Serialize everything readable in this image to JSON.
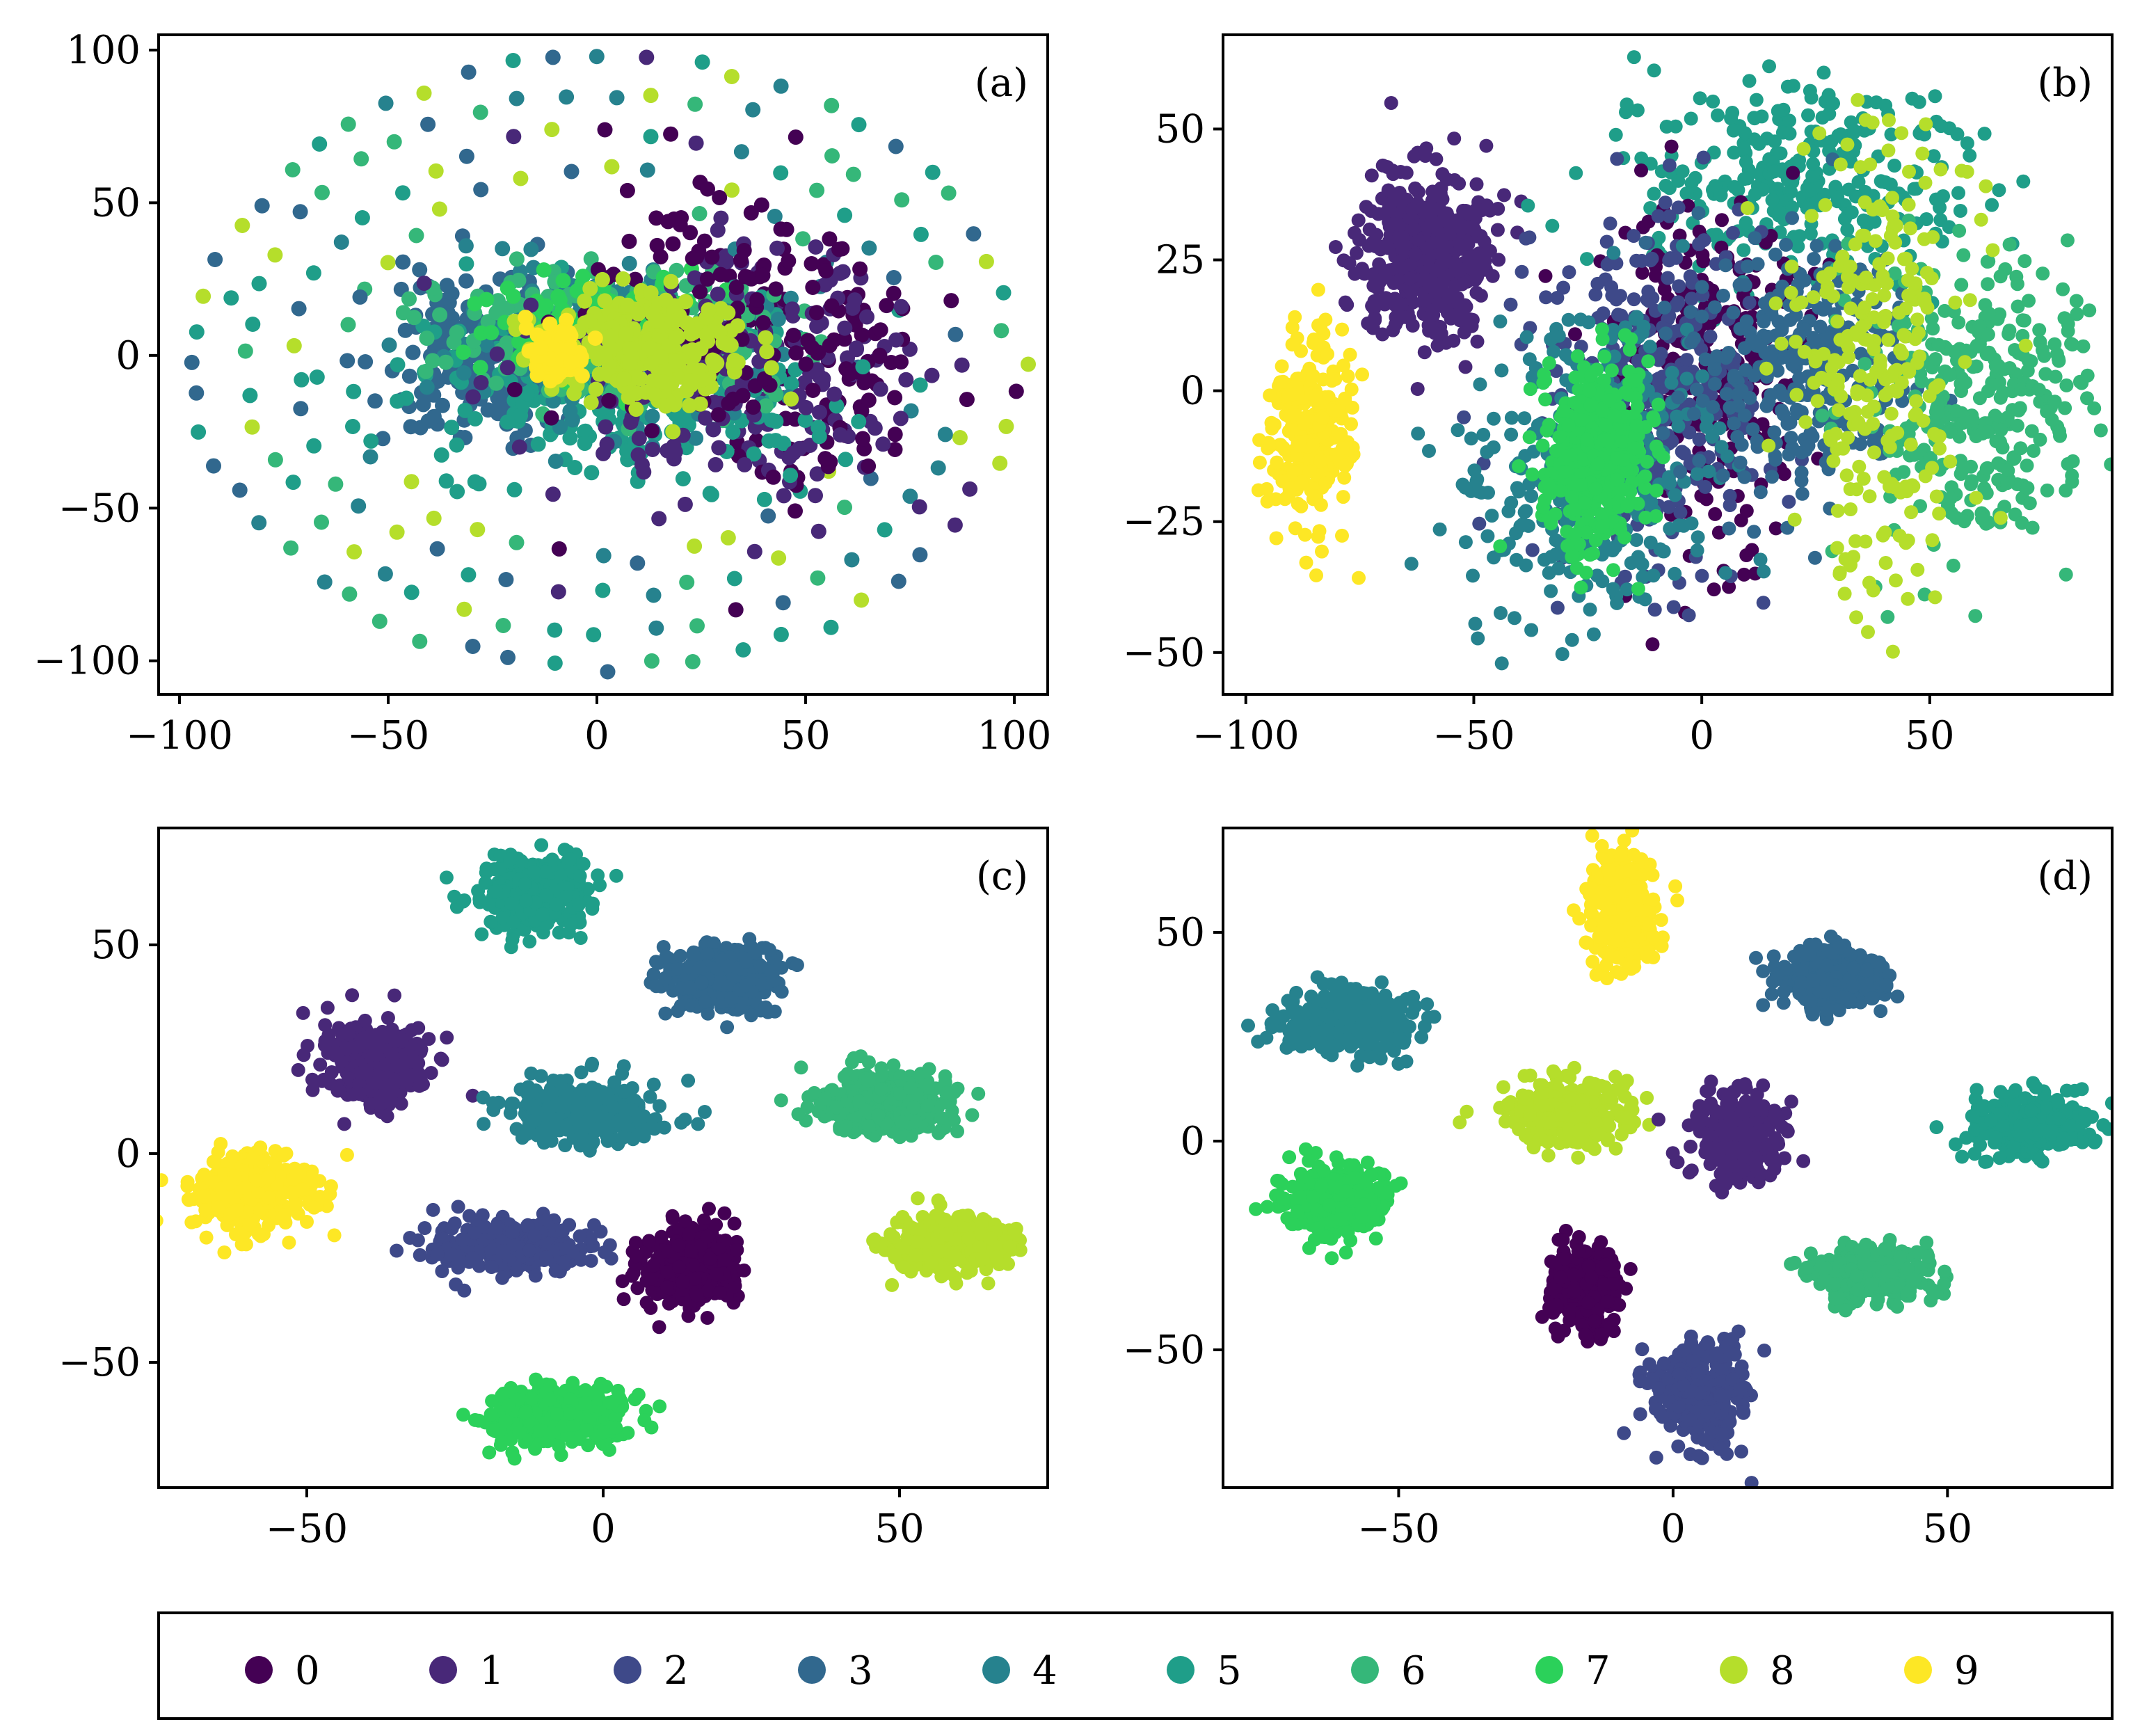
{
  "colors": [
    "#440154",
    "#482878",
    "#3e4989",
    "#31688e",
    "#26828e",
    "#1f9e89",
    "#35b779",
    "#2bd15a",
    "#b5de2b",
    "#fde725"
  ],
  "legend": {
    "entries": [
      "0",
      "1",
      "2",
      "3",
      "4",
      "5",
      "6",
      "7",
      "8",
      "9"
    ]
  },
  "chart_data": [
    {
      "type": "scatter",
      "panel_label": "(a)",
      "xlim": [
        -105,
        108
      ],
      "ylim": [
        -111,
        105
      ],
      "xticks": [
        -100,
        -50,
        0,
        50,
        100
      ],
      "yticks": [
        -100,
        -50,
        0,
        50,
        100
      ],
      "pattern": "rings",
      "clusters": [
        {
          "class": 3,
          "cx": -28,
          "cy": 0,
          "sx": 10,
          "sy": 13,
          "n": 220
        },
        {
          "class": 5,
          "cx": 5,
          "cy": -12,
          "sx": 24,
          "sy": 14,
          "n": 260
        },
        {
          "class": 4,
          "cx": 8,
          "cy": 6,
          "sx": 22,
          "sy": 13,
          "n": 200
        },
        {
          "class": 6,
          "cx": 6,
          "cy": 8,
          "sx": 22,
          "sy": 12,
          "n": 220
        },
        {
          "class": 7,
          "cx": 0,
          "cy": 10,
          "sx": 12,
          "sy": 8,
          "n": 120
        },
        {
          "class": 1,
          "cx": 22,
          "cy": -5,
          "sx": 22,
          "sy": 20,
          "n": 140
        },
        {
          "class": 0,
          "cx": 28,
          "cy": 15,
          "sx": 18,
          "sy": 20,
          "n": 110
        },
        {
          "class": 8,
          "cx": 12,
          "cy": 2,
          "sx": 12,
          "sy": 9,
          "n": 280
        },
        {
          "class": 9,
          "cx": -10,
          "cy": 1,
          "sx": 3.5,
          "sy": 4,
          "n": 90
        }
      ]
    },
    {
      "type": "scatter",
      "panel_label": "(b)",
      "xlim": [
        -105,
        90
      ],
      "ylim": [
        -58,
        68
      ],
      "xticks": [
        -100,
        -50,
        0,
        50
      ],
      "yticks": [
        -50,
        -25,
        0,
        25,
        50
      ],
      "pattern": "mixed",
      "clusters": [
        {
          "class": 1,
          "cx": -60,
          "cy": 26,
          "sx": 7,
          "sy": 8,
          "n": 450
        },
        {
          "class": 9,
          "cx": -86,
          "cy": -8,
          "sx": 4.5,
          "sy": 9,
          "n": 300
        },
        {
          "class": 5,
          "cx": 20,
          "cy": 40,
          "sx": 17,
          "sy": 10,
          "n": 300
        },
        {
          "class": 0,
          "cx": 0,
          "cy": 5,
          "sx": 10,
          "sy": 16,
          "n": 260
        },
        {
          "class": 2,
          "cx": -10,
          "cy": 0,
          "sx": 12,
          "sy": 17,
          "n": 320
        },
        {
          "class": 4,
          "cx": -25,
          "cy": -15,
          "sx": 14,
          "sy": 14,
          "n": 320
        },
        {
          "class": 3,
          "cx": 22,
          "cy": 5,
          "sx": 12,
          "sy": 12,
          "n": 300
        },
        {
          "class": 6,
          "cx": 62,
          "cy": -2,
          "sx": 12,
          "sy": 14,
          "n": 320
        },
        {
          "class": 8,
          "cx": 38,
          "cy": 5,
          "sx": 10,
          "sy": 22,
          "n": 260
        },
        {
          "class": 7,
          "cx": -23,
          "cy": -12,
          "sx": 6,
          "sy": 8,
          "n": 420
        }
      ]
    },
    {
      "type": "scatter",
      "panel_label": "(c)",
      "xlim": [
        -75,
        75
      ],
      "ylim": [
        -80,
        78
      ],
      "xticks": [
        -50,
        0,
        50
      ],
      "yticks": [
        -50,
        0,
        50
      ],
      "pattern": "blobs",
      "clusters": [
        {
          "class": 5,
          "cx": -11,
          "cy": 62,
          "sx": 4.5,
          "sy": 4.5,
          "n": 350
        },
        {
          "class": 3,
          "cx": 20,
          "cy": 42,
          "sx": 5,
          "sy": 4,
          "n": 350
        },
        {
          "class": 1,
          "cx": -39,
          "cy": 22,
          "sx": 4.5,
          "sy": 5,
          "n": 300
        },
        {
          "class": 4,
          "cx": -3,
          "cy": 10,
          "sx": 6,
          "sy": 3.5,
          "n": 350
        },
        {
          "class": 6,
          "cx": 47,
          "cy": 12,
          "sx": 5.5,
          "sy": 3.5,
          "n": 350
        },
        {
          "class": 9,
          "cx": -59,
          "cy": -9,
          "sx": 5,
          "sy": 4.5,
          "n": 350
        },
        {
          "class": 2,
          "cx": -15,
          "cy": -22,
          "sx": 7,
          "sy": 3.5,
          "n": 280
        },
        {
          "class": 0,
          "cx": 15,
          "cy": -27,
          "sx": 4,
          "sy": 4.5,
          "n": 350
        },
        {
          "class": 8,
          "cx": 58,
          "cy": -22,
          "sx": 5,
          "sy": 3.5,
          "n": 350
        },
        {
          "class": 7,
          "cx": -8,
          "cy": -62,
          "sx": 5.5,
          "sy": 3.5,
          "n": 350
        }
      ]
    },
    {
      "type": "scatter",
      "panel_label": "(d)",
      "xlim": [
        -82,
        80
      ],
      "ylim": [
        -83,
        75
      ],
      "xticks": [
        -50,
        0,
        50
      ],
      "yticks": [
        -50,
        0,
        50
      ],
      "pattern": "blobs",
      "clusters": [
        {
          "class": 9,
          "cx": -9,
          "cy": 55,
          "sx": 3,
          "sy": 7,
          "n": 300
        },
        {
          "class": 3,
          "cx": 29,
          "cy": 39,
          "sx": 4.5,
          "sy": 3.5,
          "n": 350
        },
        {
          "class": 4,
          "cx": -59,
          "cy": 29,
          "sx": 6,
          "sy": 3.5,
          "n": 350
        },
        {
          "class": 8,
          "cx": -19,
          "cy": 7,
          "sx": 5,
          "sy": 3.5,
          "n": 350
        },
        {
          "class": 1,
          "cx": 12,
          "cy": 1,
          "sx": 4,
          "sy": 5,
          "n": 300
        },
        {
          "class": 5,
          "cx": 65,
          "cy": 4,
          "sx": 5,
          "sy": 3.5,
          "n": 350
        },
        {
          "class": 7,
          "cx": -62,
          "cy": -14,
          "sx": 4.5,
          "sy": 4,
          "n": 350
        },
        {
          "class": 6,
          "cx": 36,
          "cy": -32,
          "sx": 5,
          "sy": 3,
          "n": 350
        },
        {
          "class": 0,
          "cx": -16,
          "cy": -35,
          "sx": 3,
          "sy": 5,
          "n": 280
        },
        {
          "class": 2,
          "cx": 5,
          "cy": -60,
          "sx": 4.5,
          "sy": 6,
          "n": 280
        }
      ]
    }
  ]
}
